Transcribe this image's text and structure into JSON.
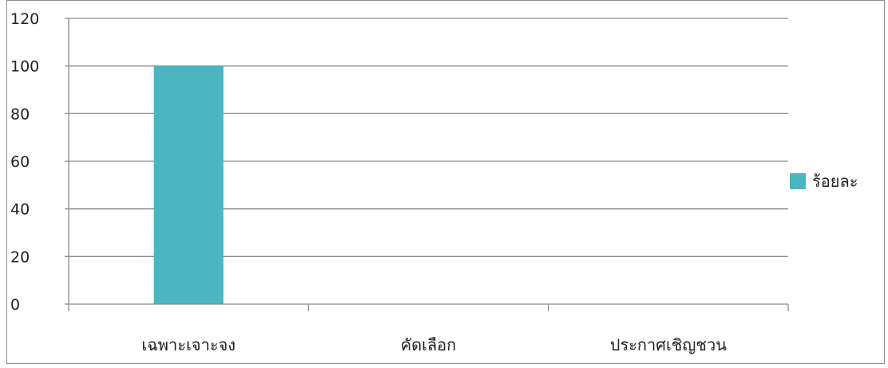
{
  "chart_data": {
    "type": "bar",
    "categories": [
      "เฉพาะเจาะจง",
      "คัดเลือก",
      "ประกาศเชิญชวน"
    ],
    "series": [
      {
        "name": "ร้อยละ",
        "values": [
          100,
          0,
          0
        ],
        "color": "#4BB5C1"
      }
    ],
    "ylim": [
      0,
      120
    ],
    "yticks": [
      "0",
      "20",
      "40",
      "60",
      "80",
      "100",
      "120"
    ],
    "grid": true,
    "legend_position": "right",
    "gridline_color": "#8c8c8c"
  }
}
